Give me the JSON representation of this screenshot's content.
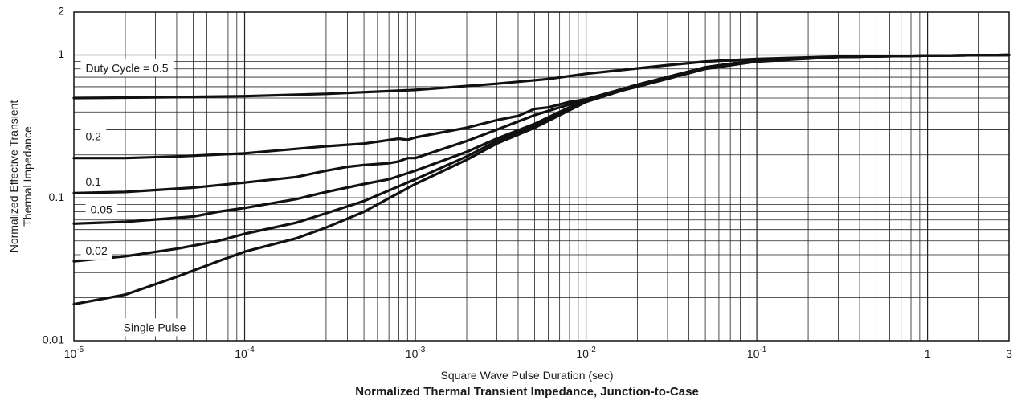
{
  "chart_data": {
    "type": "line",
    "title": "",
    "caption": "Normalized Thermal Transient Impedance, Junction-to-Case",
    "xlabel": "Square Wave Pulse Duration (sec)",
    "ylabel_line1": "Normalized Effective Transient",
    "ylabel_line2": "Thermal Impedance",
    "x_scale": "log",
    "y_scale": "log",
    "xlim": [
      1e-05,
      3
    ],
    "ylim": [
      0.01,
      2
    ],
    "grid": true,
    "legend": "none",
    "line_color": "#111111",
    "x_ticks": [
      {
        "value": 1e-05,
        "base": "10",
        "exp": "-5"
      },
      {
        "value": 0.0001,
        "base": "10",
        "exp": "-4"
      },
      {
        "value": 0.001,
        "base": "10",
        "exp": "-3"
      },
      {
        "value": 0.01,
        "base": "10",
        "exp": "-2"
      },
      {
        "value": 0.1,
        "base": "10",
        "exp": "-1"
      },
      {
        "value": 1,
        "base": "1",
        "exp": ""
      },
      {
        "value": 3,
        "base": "3",
        "exp": ""
      }
    ],
    "y_ticks": [
      {
        "value": 0.01,
        "label": "0.01"
      },
      {
        "value": 0.1,
        "label": "0.1"
      },
      {
        "value": 1,
        "label": "1"
      },
      {
        "value": 2,
        "label": "2"
      }
    ],
    "series": [
      {
        "name": "Duty Cycle = 0.5",
        "label_x": 1.17e-05,
        "label_y": 0.8,
        "x": [
          1e-05,
          3e-05,
          0.0001,
          0.0003,
          0.001,
          0.003,
          0.006,
          0.01,
          0.03,
          0.05,
          0.1,
          0.3,
          1,
          3
        ],
        "y": [
          0.5,
          0.505,
          0.515,
          0.535,
          0.57,
          0.63,
          0.68,
          0.74,
          0.85,
          0.9,
          0.94,
          0.975,
          0.99,
          1.0
        ]
      },
      {
        "name": "0.2",
        "label_x": 1.17e-05,
        "label_y": 0.265,
        "x": [
          1e-05,
          2e-05,
          4e-05,
          0.0001,
          0.0003,
          0.0005,
          0.0008,
          0.0009,
          0.001,
          0.002,
          0.003,
          0.004,
          0.005,
          0.006,
          0.008,
          0.01,
          0.02,
          0.05,
          0.1,
          0.3,
          1,
          3
        ],
        "y": [
          0.19,
          0.19,
          0.195,
          0.205,
          0.23,
          0.24,
          0.26,
          0.255,
          0.265,
          0.31,
          0.35,
          0.375,
          0.42,
          0.43,
          0.47,
          0.49,
          0.6,
          0.8,
          0.9,
          0.97,
          0.99,
          1.0
        ]
      },
      {
        "name": "0.1",
        "label_x": 1.17e-05,
        "label_y": 0.128,
        "x": [
          1e-05,
          2e-05,
          5e-05,
          0.0001,
          0.0002,
          0.0003,
          0.0004,
          0.0005,
          0.0007,
          0.0008,
          0.0009,
          0.001,
          0.002,
          0.003,
          0.005,
          0.01,
          0.02,
          0.05,
          0.1,
          0.3,
          1,
          3
        ],
        "y": [
          0.108,
          0.11,
          0.118,
          0.128,
          0.14,
          0.155,
          0.165,
          0.17,
          0.175,
          0.18,
          0.19,
          0.19,
          0.25,
          0.3,
          0.38,
          0.49,
          0.62,
          0.82,
          0.92,
          0.97,
          0.99,
          1.0
        ]
      },
      {
        "name": "0.05",
        "label_x": 1.25e-05,
        "label_y": 0.082,
        "x": [
          1e-05,
          2e-05,
          5e-05,
          7e-05,
          0.0001,
          0.0002,
          0.0003,
          0.0005,
          0.0007,
          0.001,
          0.002,
          0.003,
          0.005,
          0.01,
          0.02,
          0.05,
          0.1,
          0.3,
          1,
          3
        ],
        "y": [
          0.066,
          0.068,
          0.074,
          0.08,
          0.085,
          0.098,
          0.11,
          0.125,
          0.135,
          0.155,
          0.21,
          0.26,
          0.33,
          0.49,
          0.62,
          0.82,
          0.92,
          0.97,
          0.99,
          1.0
        ]
      },
      {
        "name": "0.02",
        "label_x": 1.17e-05,
        "label_y": 0.042,
        "x": [
          1e-05,
          2e-05,
          4e-05,
          7e-05,
          0.0001,
          0.0002,
          0.0003,
          0.0005,
          0.001,
          0.002,
          0.003,
          0.005,
          0.01,
          0.02,
          0.05,
          0.1,
          0.3,
          1,
          3
        ],
        "y": [
          0.036,
          0.039,
          0.044,
          0.05,
          0.056,
          0.067,
          0.078,
          0.095,
          0.135,
          0.195,
          0.25,
          0.32,
          0.48,
          0.62,
          0.82,
          0.92,
          0.97,
          0.99,
          1.0
        ]
      },
      {
        "name": "Single Pulse",
        "label_x": 1.95e-05,
        "label_y": 0.0122,
        "x": [
          1e-05,
          2e-05,
          4e-05,
          7e-05,
          0.0001,
          0.0002,
          0.0003,
          0.0005,
          0.001,
          0.002,
          0.003,
          0.005,
          0.01,
          0.02,
          0.05,
          0.1,
          0.3,
          1,
          3
        ],
        "y": [
          0.018,
          0.021,
          0.028,
          0.036,
          0.042,
          0.052,
          0.062,
          0.08,
          0.125,
          0.185,
          0.24,
          0.31,
          0.47,
          0.61,
          0.81,
          0.91,
          0.97,
          0.99,
          1.0
        ]
      }
    ]
  }
}
